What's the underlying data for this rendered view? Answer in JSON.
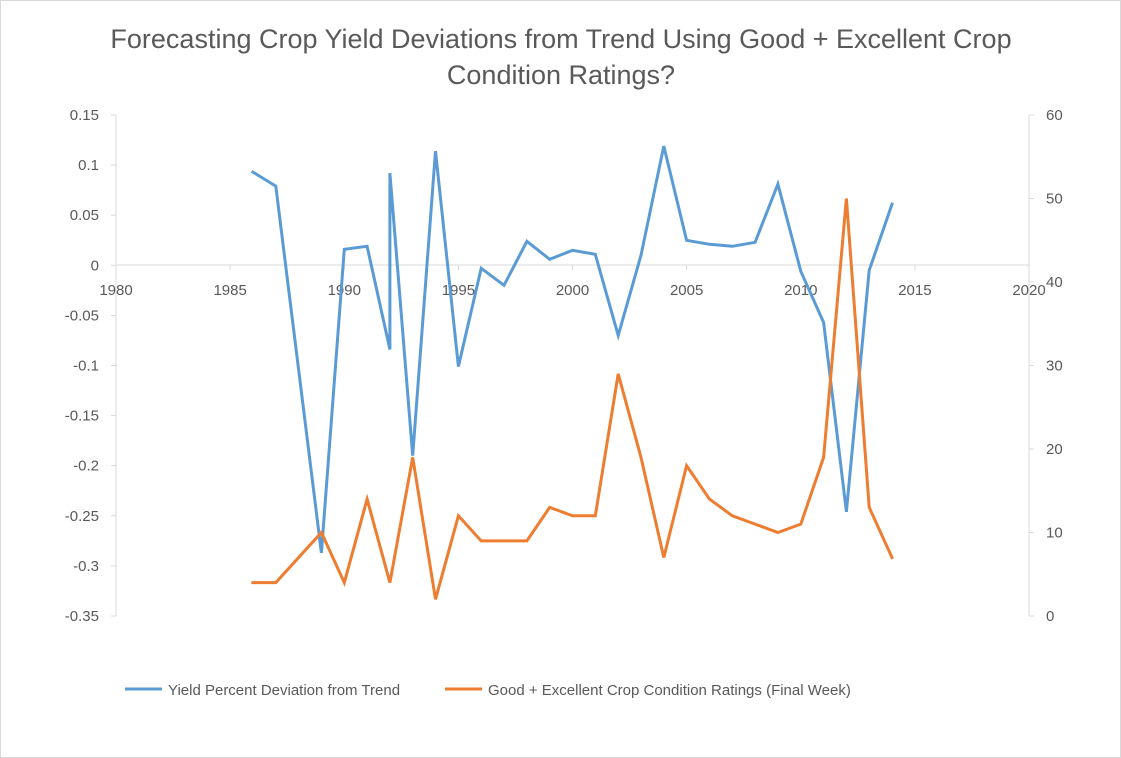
{
  "chart_data": {
    "type": "line",
    "title_lines": [
      "Forecasting Crop Yield Deviations from Trend Using Good + Excellent Crop",
      "Condition Ratings?"
    ],
    "xlabel": "",
    "ylabel": "",
    "xlim": [
      1980,
      2020
    ],
    "x_ticks": [
      1980,
      1985,
      1990,
      1995,
      2000,
      2005,
      2010,
      2015,
      2020
    ],
    "y_left": {
      "lim": [
        -0.35,
        0.15
      ],
      "ticks": [
        -0.35,
        -0.3,
        -0.25,
        -0.2,
        -0.15,
        -0.1,
        -0.05,
        0,
        0.05,
        0.1,
        0.15
      ],
      "tick_labels": [
        "-0.35",
        "-0.3",
        "-0.25",
        "-0.2",
        "-0.15",
        "-0.1",
        "-0.05",
        "0",
        "0.05",
        "0.1",
        "0.15"
      ]
    },
    "y_right": {
      "lim": [
        0,
        60
      ],
      "ticks": [
        0,
        10,
        20,
        30,
        40,
        50,
        60
      ],
      "tick_labels": [
        "0",
        "10",
        "20",
        "30",
        "40",
        "50",
        "60"
      ]
    },
    "grid": false,
    "legend_position": "bottom",
    "series": [
      {
        "name": "Yield Percent Deviation from Trend",
        "axis": "left",
        "color": "#5b9bd5",
        "points": [
          [
            1986,
            0.093
          ],
          [
            1987,
            0.079
          ],
          [
            1989,
            -0.287
          ],
          [
            1990,
            0.016
          ],
          [
            1991,
            0.019
          ],
          [
            1992,
            -0.084
          ],
          [
            1992,
            0.092
          ],
          [
            1993,
            -0.19
          ],
          [
            1994,
            0.114
          ],
          [
            1995,
            -0.101
          ],
          [
            1996,
            -0.003
          ],
          [
            1997,
            -0.02
          ],
          [
            1998,
            0.024
          ],
          [
            1999,
            0.006
          ],
          [
            2000,
            0.015
          ],
          [
            2001,
            0.011
          ],
          [
            2002,
            -0.07
          ],
          [
            2003,
            0.01
          ],
          [
            2004,
            0.119
          ],
          [
            2005,
            0.025
          ],
          [
            2006,
            0.021
          ],
          [
            2007,
            0.019
          ],
          [
            2008,
            0.023
          ],
          [
            2009,
            0.081
          ],
          [
            2010,
            -0.006
          ],
          [
            2011,
            -0.057
          ],
          [
            2012,
            -0.246
          ],
          [
            2013,
            -0.005
          ],
          [
            2014,
            0.061
          ]
        ]
      },
      {
        "name": "Good + Excellent Crop Condition Ratings (Final Week)",
        "axis": "right",
        "color": "#ed7d31",
        "points": [
          [
            1986,
            4
          ],
          [
            1987,
            4
          ],
          [
            1989,
            10
          ],
          [
            1990,
            4
          ],
          [
            1991,
            14
          ],
          [
            1992,
            4
          ],
          [
            1993,
            19
          ],
          [
            1994,
            2
          ],
          [
            1995,
            12
          ],
          [
            1996,
            9
          ],
          [
            1997,
            9
          ],
          [
            1998,
            9
          ],
          [
            1999,
            13
          ],
          [
            2000,
            12
          ],
          [
            2001,
            12
          ],
          [
            2002,
            29
          ],
          [
            2003,
            19
          ],
          [
            2004,
            7
          ],
          [
            2005,
            18
          ],
          [
            2006,
            14
          ],
          [
            2007,
            12
          ],
          [
            2008,
            11
          ],
          [
            2009,
            10
          ],
          [
            2010,
            11
          ],
          [
            2011,
            19
          ],
          [
            2012,
            50
          ],
          [
            2013,
            13
          ],
          [
            2014,
            7
          ]
        ]
      }
    ]
  }
}
